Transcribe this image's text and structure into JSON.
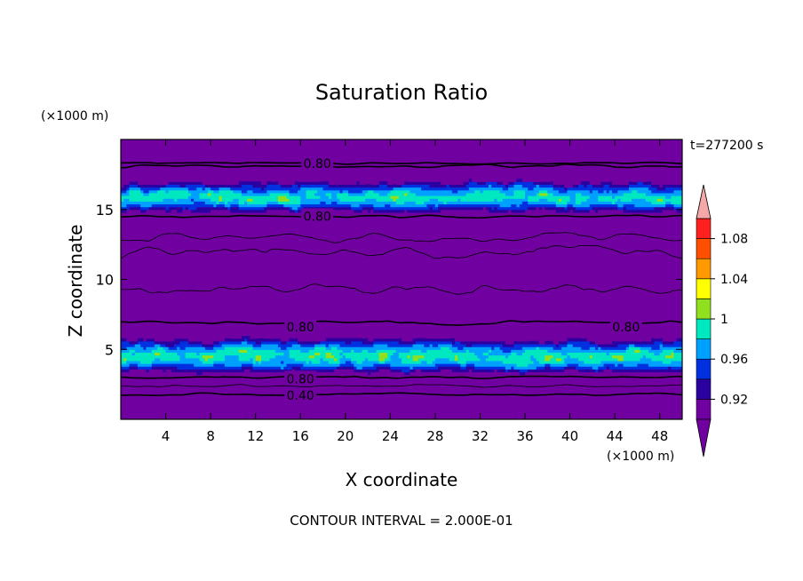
{
  "chart_data": {
    "type": "heatmap",
    "title": "Saturation Ratio",
    "time_label": "t=277200 s",
    "xlabel": "X coordinate",
    "ylabel": "Z coordinate",
    "x_unit": "(×1000 m)",
    "y_unit": "(×1000 m)",
    "xlim": [
      0,
      50
    ],
    "ylim": [
      0,
      20
    ],
    "x_ticks": [
      4,
      8,
      12,
      16,
      20,
      24,
      28,
      32,
      36,
      40,
      44,
      48
    ],
    "y_ticks": [
      5,
      10,
      15
    ],
    "footer": "CONTOUR INTERVAL = 2.000E-01",
    "contour_labels": [
      {
        "text": "0.80",
        "x": 17.5,
        "y": 18.3
      },
      {
        "text": "0.80",
        "x": 17.5,
        "y": 14.5
      },
      {
        "text": "0.80",
        "x": 16.0,
        "y": 6.6
      },
      {
        "text": "0.80",
        "x": 45.0,
        "y": 6.6
      },
      {
        "text": "0.80",
        "x": 16.0,
        "y": 2.9
      },
      {
        "text": "0.40",
        "x": 16.0,
        "y": 1.7
      }
    ],
    "colorbar": {
      "labels": [
        "1.08",
        "1.04",
        "1",
        "0.96",
        "0.92"
      ],
      "label_values": [
        1.08,
        1.04,
        1.0,
        0.96,
        0.92
      ],
      "levels": [
        0.9,
        0.92,
        0.94,
        0.96,
        0.98,
        1.0,
        1.02,
        1.04,
        1.06,
        1.08,
        1.1
      ],
      "colors": [
        "#7000a0",
        "#2a00a0",
        "#0030e0",
        "#00a0ff",
        "#00e8c0",
        "#90e020",
        "#ffff00",
        "#ff9900",
        "#ff5000",
        "#ff2020"
      ],
      "under_color": "#7000a0",
      "over_color": "#f4a8a8"
    },
    "layers": [
      {
        "name": "upper moist layer",
        "z_bottom": 14.6,
        "z_top": 17.2,
        "max_value": 1.02
      },
      {
        "name": "lower moist layer",
        "z_bottom": 3.1,
        "z_top": 6.0,
        "max_value": 1.02
      }
    ],
    "background_color": "#7000a0",
    "contour_color": "#000000"
  }
}
